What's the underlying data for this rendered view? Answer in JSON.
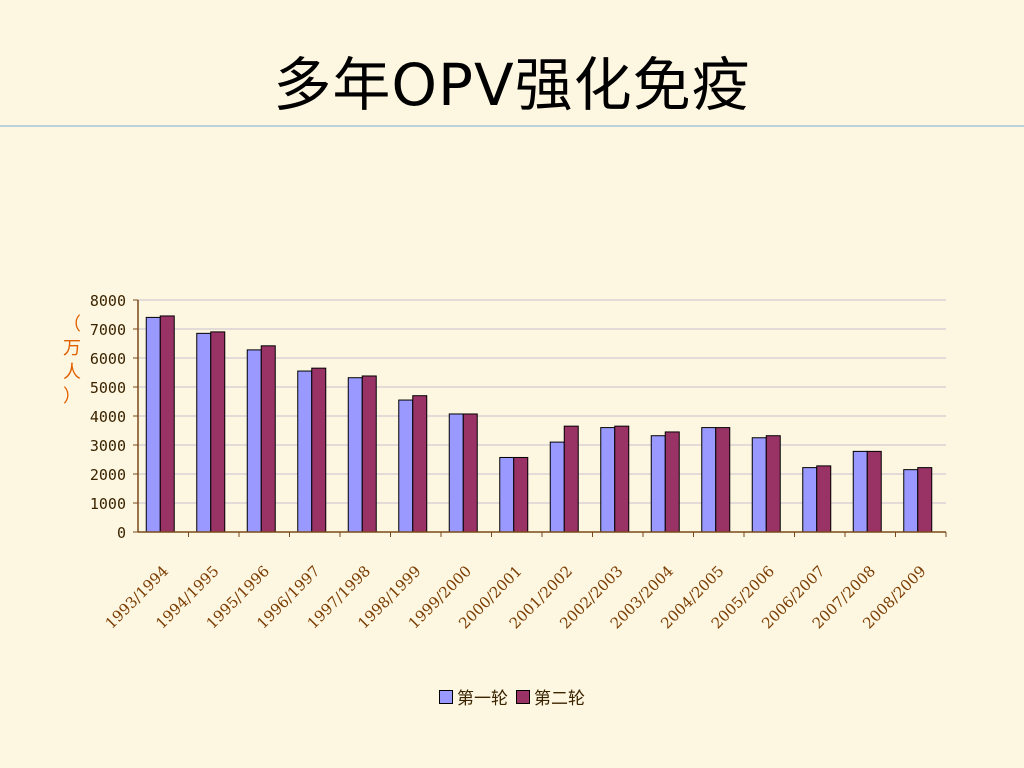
{
  "slide": {
    "title": "多年OPV强化免疫"
  },
  "chart_data": {
    "type": "bar",
    "title": "",
    "xlabel": "",
    "ylabel": "（万人）",
    "ylim": [
      0,
      8000
    ],
    "yticks": [
      0,
      1000,
      2000,
      3000,
      4000,
      5000,
      6000,
      7000,
      8000
    ],
    "grid": true,
    "legend_position": "bottom",
    "categories": [
      "1993/1994",
      "1994/1995",
      "1995/1996",
      "1996/1997",
      "1997/1998",
      "1998/1999",
      "1999/2000",
      "2000/2001",
      "2001/2002",
      "2002/2003",
      "2003/2004",
      "2004/2005",
      "2005/2006",
      "2006/2007",
      "2007/2008",
      "2008/2009"
    ],
    "series": [
      {
        "name": "第一轮",
        "color": "#9999ff",
        "values": [
          7400,
          6850,
          6280,
          5550,
          5320,
          4550,
          4070,
          2570,
          3100,
          3600,
          3320,
          3600,
          3250,
          2220,
          2780,
          2150
        ]
      },
      {
        "name": "第二轮",
        "color": "#993366",
        "values": [
          7450,
          6900,
          6420,
          5650,
          5380,
          4700,
          4070,
          2570,
          3650,
          3650,
          3450,
          3600,
          3320,
          2280,
          2780,
          2220
        ]
      }
    ]
  }
}
